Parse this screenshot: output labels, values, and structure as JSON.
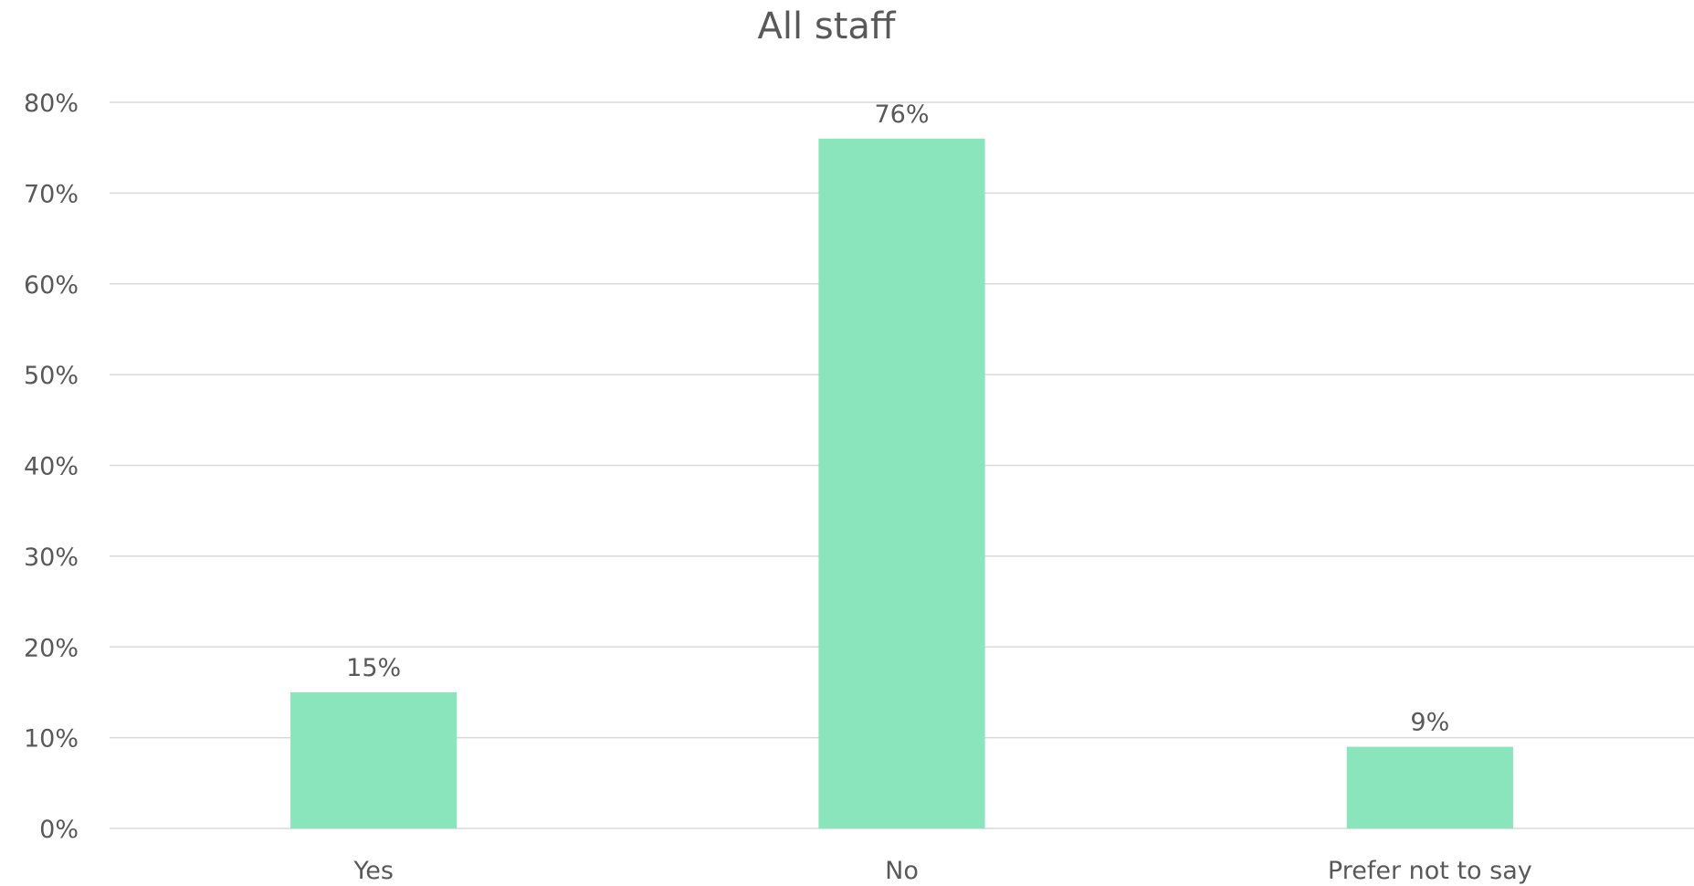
{
  "chart_data": {
    "type": "bar",
    "title": "All staff",
    "categories": [
      "Yes",
      "No",
      "Prefer not to say"
    ],
    "values": [
      15,
      76,
      9
    ],
    "value_labels": [
      "15%",
      "76%",
      "9%"
    ],
    "ylim": [
      0,
      80
    ],
    "y_ticks": [
      0,
      10,
      20,
      30,
      40,
      50,
      60,
      70,
      80
    ],
    "y_tick_labels": [
      "0%",
      "10%",
      "20%",
      "30%",
      "40%",
      "50%",
      "60%",
      "70%",
      "80%"
    ],
    "xlabel": "",
    "ylabel": "",
    "grid": true,
    "legend": "none",
    "bar_color": "#8ae5bd"
  }
}
